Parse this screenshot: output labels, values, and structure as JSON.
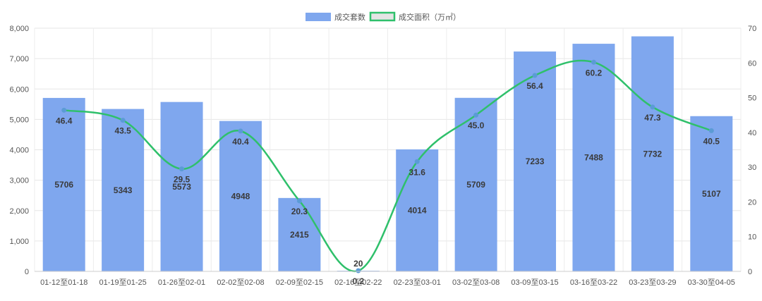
{
  "chart_data": {
    "type": "bar",
    "categories": [
      "01-12至01-18",
      "01-19至01-25",
      "01-26至02-01",
      "02-02至02-08",
      "02-09至02-15",
      "02-16至02-22",
      "02-23至03-01",
      "03-02至03-08",
      "03-09至03-15",
      "03-16至03-22",
      "03-23至03-29",
      "03-30至04-05"
    ],
    "series": [
      {
        "name": "成交套数",
        "type": "bar",
        "axis": "left",
        "color": "#7fa7ee",
        "values": [
          5706,
          5343,
          5573,
          4948,
          2415,
          20,
          4014,
          5709,
          7233,
          7488,
          7732,
          5107
        ]
      },
      {
        "name": "成交面积（万㎡）",
        "type": "line",
        "axis": "right",
        "color": "#2fc06b",
        "point_color": "#5b9bd5",
        "values": [
          46.4,
          43.5,
          29.5,
          40.4,
          20.3,
          0.2,
          31.6,
          45.0,
          56.4,
          60.2,
          47.3,
          40.5
        ]
      }
    ],
    "ylim_left": [
      0,
      8000
    ],
    "yticks_left": [
      "0",
      "1,000",
      "2,000",
      "3,000",
      "4,000",
      "5,000",
      "6,000",
      "7,000",
      "8,000"
    ],
    "ylim_right": [
      0,
      70
    ],
    "yticks_right": [
      "0",
      "10",
      "20",
      "30",
      "40",
      "50",
      "60",
      "70"
    ],
    "legend_position": "top-center",
    "grid": true
  }
}
